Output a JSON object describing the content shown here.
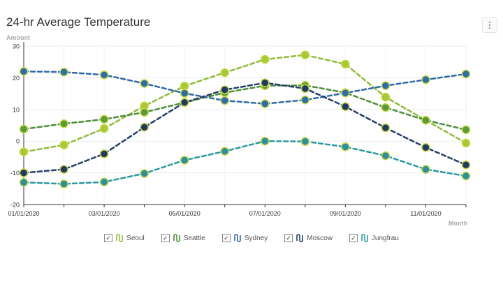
{
  "title": "24-hr Average Temperature",
  "menu_icon": "⋮",
  "chart_data": {
    "type": "line",
    "title": "24-hr Average Temperature",
    "ylabel": "Amount",
    "xlabel": "Month",
    "ylim": [
      -20,
      30
    ],
    "yticks": [
      -20,
      -10,
      0,
      10,
      20,
      30
    ],
    "grid": true,
    "line_style": "dashed",
    "legend_position": "bottom",
    "x": [
      "01/01/2020",
      "02/01/2020",
      "03/01/2020",
      "04/01/2020",
      "05/01/2020",
      "06/01/2020",
      "07/01/2020",
      "08/01/2020",
      "09/01/2020",
      "10/01/2020",
      "11/01/2020",
      "12/01/2020"
    ],
    "xticklabels": [
      "01/01/2020",
      "03/01/2020",
      "05/01/2020",
      "07/01/2020",
      "09/01/2020",
      "11/01/2020"
    ],
    "series": [
      {
        "name": "Seoul",
        "color": "#8fbc3b",
        "marker_fill": "#a8c83a",
        "values": [
          -3.4,
          -1.2,
          4.0,
          11.1,
          17.4,
          21.6,
          25.8,
          27.2,
          24.3,
          13.9,
          6.6,
          -0.6
        ]
      },
      {
        "name": "Seattle",
        "color": "#4e8f3a",
        "marker_fill": "#5a9a3c",
        "values": [
          3.8,
          5.5,
          6.9,
          9.1,
          12.2,
          15.3,
          17.5,
          17.6,
          15.3,
          10.6,
          6.6,
          3.6
        ]
      },
      {
        "name": "Sydney",
        "color": "#2f6aa5",
        "marker_fill": "#2e6cab",
        "values": [
          22.0,
          21.8,
          20.9,
          18.2,
          15.1,
          12.8,
          11.8,
          13.0,
          15.2,
          17.5,
          19.4,
          21.2
        ]
      },
      {
        "name": "Moscow",
        "color": "#243f6b",
        "marker_fill": "#223a63",
        "values": [
          -10.0,
          -8.9,
          -4.0,
          4.4,
          12.2,
          16.2,
          18.4,
          16.6,
          10.9,
          4.2,
          -2.0,
          -7.5
        ]
      },
      {
        "name": "Jungfrau",
        "color": "#2b9aa0",
        "marker_fill": "#2e8fa0",
        "values": [
          -13.0,
          -13.5,
          -12.9,
          -10.2,
          -6.0,
          -3.2,
          0.0,
          -0.1,
          -1.8,
          -4.6,
          -8.9,
          -11.0
        ]
      }
    ]
  },
  "legend": {
    "check_glyph": "✓",
    "items": [
      {
        "label": "Seoul",
        "color": "#8fbc3b"
      },
      {
        "label": "Seattle",
        "color": "#4e8f3a"
      },
      {
        "label": "Sydney",
        "color": "#2f6aa5"
      },
      {
        "label": "Moscow",
        "color": "#243f6b"
      },
      {
        "label": "Jungfrau",
        "color": "#2b9aa0"
      }
    ]
  }
}
